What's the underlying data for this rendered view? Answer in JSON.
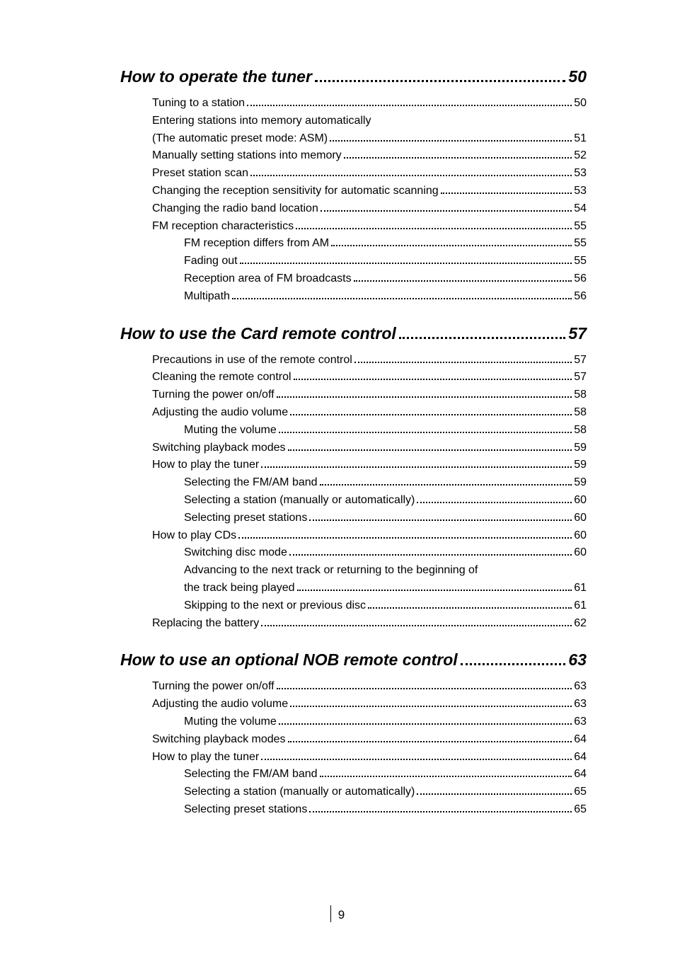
{
  "page_number": "9",
  "sections": [
    {
      "title": "How to operate the tuner",
      "page": "50",
      "entries": [
        {
          "lvl": 1,
          "label": "Tuning to a station",
          "page": "50"
        },
        {
          "lvl": 1,
          "label": "Entering stations into memory automatically",
          "page": null
        },
        {
          "lvl": 1,
          "label": "(The automatic preset mode: ASM)",
          "page": "51"
        },
        {
          "lvl": 1,
          "label": "Manually setting stations into memory",
          "page": "52"
        },
        {
          "lvl": 1,
          "label": "Preset station scan",
          "page": "53"
        },
        {
          "lvl": 1,
          "label": "Changing the reception sensitivity for automatic scanning",
          "page": " 53",
          "spaced": true
        },
        {
          "lvl": 1,
          "label": "Changing the radio band location",
          "page": " 54",
          "spaced": true
        },
        {
          "lvl": 1,
          "label": "FM reception characteristics",
          "page": "55"
        },
        {
          "lvl": 2,
          "label": "FM reception differs from AM",
          "page": "55"
        },
        {
          "lvl": 2,
          "label": "Fading out",
          "page": "55"
        },
        {
          "lvl": 2,
          "label": "Reception area of FM broadcasts",
          "page": "56"
        },
        {
          "lvl": 2,
          "label": "Multipath",
          "page": "56"
        }
      ]
    },
    {
      "title": "How to use the Card remote control",
      "page": "57",
      "entries": [
        {
          "lvl": 1,
          "label": "Precautions in use of the remote control",
          "page": "57"
        },
        {
          "lvl": 1,
          "label": "Cleaning the remote control",
          "page": "57"
        },
        {
          "lvl": 1,
          "label": "Turning the power on/off",
          "page": "58"
        },
        {
          "lvl": 1,
          "label": "Adjusting the audio volume",
          "page": "58"
        },
        {
          "lvl": 2,
          "label": "Muting the volume",
          "page": "58"
        },
        {
          "lvl": 1,
          "label": "Switching playback modes",
          "page": "59"
        },
        {
          "lvl": 1,
          "label": "How to play the tuner",
          "page": "59"
        },
        {
          "lvl": 2,
          "label": "Selecting the FM/AM band",
          "page": "59"
        },
        {
          "lvl": 2,
          "label": "Selecting a station (manually or automatically)",
          "page": "60"
        },
        {
          "lvl": 2,
          "label": "Selecting preset stations",
          "page": "60"
        },
        {
          "lvl": 1,
          "label": "How to play CDs",
          "page": "60"
        },
        {
          "lvl": 2,
          "label": "Switching disc mode",
          "page": "60"
        },
        {
          "lvl": 2,
          "label": "Advancing to the next track or returning to the beginning of",
          "page": null
        },
        {
          "lvl": 2,
          "label": "the track being played",
          "page": "61"
        },
        {
          "lvl": 2,
          "label": "Skipping to the next or previous disc",
          "page": "61"
        },
        {
          "lvl": 1,
          "label": "Replacing the battery",
          "page": "62"
        }
      ]
    },
    {
      "title": "How to use an optional NOB remote control",
      "page": "63",
      "entries": [
        {
          "lvl": 1,
          "label": "Turning the power on/off",
          "page": "63"
        },
        {
          "lvl": 1,
          "label": "Adjusting the audio volume",
          "page": "63"
        },
        {
          "lvl": 2,
          "label": "Muting the volume",
          "page": "63"
        },
        {
          "lvl": 1,
          "label": "Switching playback modes",
          "page": "64"
        },
        {
          "lvl": 1,
          "label": "How to play the tuner",
          "page": "64"
        },
        {
          "lvl": 2,
          "label": "Selecting the FM/AM band",
          "page": "64"
        },
        {
          "lvl": 2,
          "label": "Selecting a station (manually or automatically)",
          "page": "65"
        },
        {
          "lvl": 2,
          "label": "Selecting preset stations",
          "page": "65"
        }
      ]
    }
  ]
}
